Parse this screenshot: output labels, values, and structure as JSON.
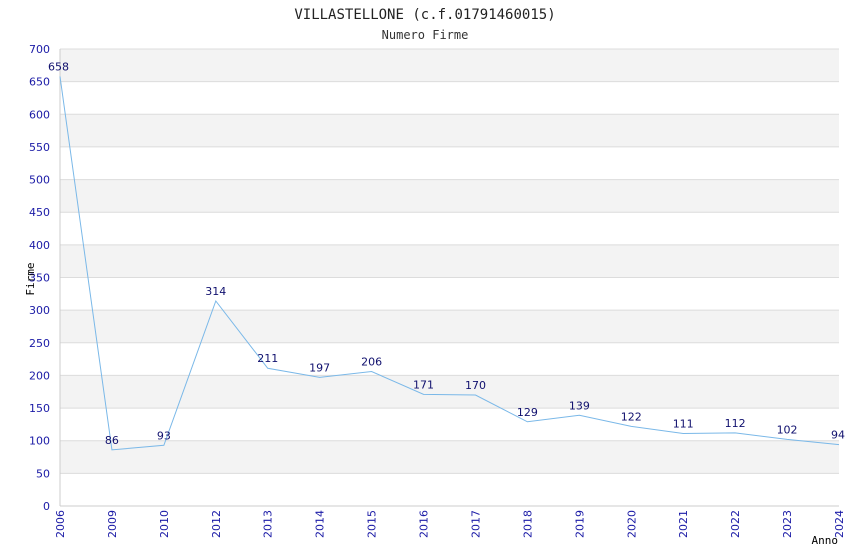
{
  "chart_data": {
    "type": "line",
    "title": "VILLASTELLONE (c.f.01791460015)",
    "subtitle": "Numero Firme",
    "ylabel": "Firme",
    "xlabel": "Anno",
    "categories": [
      "2006",
      "2009",
      "2010",
      "2012",
      "2013",
      "2014",
      "2015",
      "2016",
      "2017",
      "2018",
      "2019",
      "2020",
      "2021",
      "2022",
      "2023",
      "2024"
    ],
    "series": [
      {
        "values": [
          658,
          86,
          93,
          314,
          211,
          197,
          206,
          171,
          170,
          129,
          139,
          122,
          111,
          112,
          102,
          94
        ]
      }
    ],
    "ylim": [
      0,
      700
    ],
    "yticks": [
      0,
      50,
      100,
      150,
      200,
      250,
      300,
      350,
      400,
      450,
      500,
      550,
      600,
      650,
      700
    ],
    "grid": "horizontal-bands",
    "colors": {
      "line": "#7ab8e8",
      "band": "#f3f3f3",
      "tick": "#1a1aa6",
      "label": "#10106e"
    }
  }
}
